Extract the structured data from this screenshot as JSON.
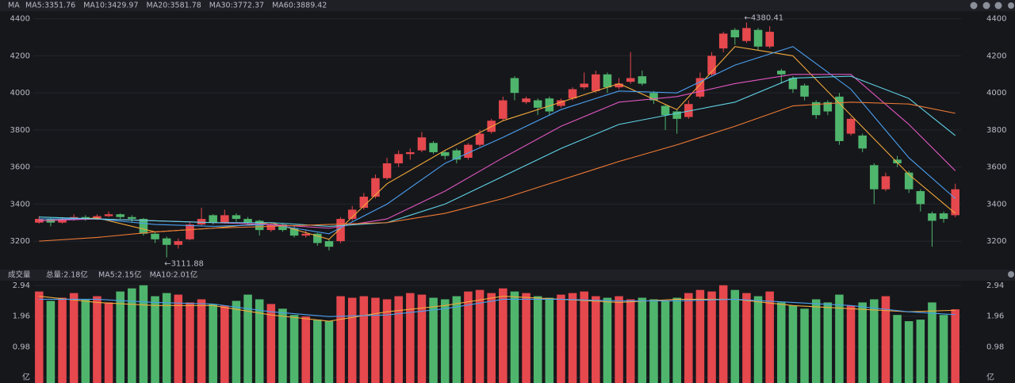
{
  "chart_data": [
    {
      "type": "candlestick",
      "title": "MA",
      "ohlc": [
        [
          3300,
          3335,
          3295,
          3320
        ],
        [
          3320,
          3325,
          3280,
          3300
        ],
        [
          3300,
          3330,
          3295,
          3320
        ],
        [
          3320,
          3345,
          3310,
          3330
        ],
        [
          3330,
          3340,
          3310,
          3320
        ],
        [
          3320,
          3345,
          3315,
          3335
        ],
        [
          3335,
          3360,
          3330,
          3345
        ],
        [
          3345,
          3350,
          3320,
          3330
        ],
        [
          3330,
          3340,
          3300,
          3320
        ],
        [
          3320,
          3325,
          3230,
          3240
        ],
        [
          3240,
          3250,
          3190,
          3210
        ],
        [
          3215,
          3225,
          3111.88,
          3180
        ],
        [
          3180,
          3215,
          3160,
          3200
        ],
        [
          3210,
          3300,
          3205,
          3290
        ],
        [
          3290,
          3380,
          3285,
          3320
        ],
        [
          3340,
          3345,
          3290,
          3300
        ],
        [
          3300,
          3370,
          3295,
          3340
        ],
        [
          3340,
          3350,
          3305,
          3320
        ],
        [
          3320,
          3330,
          3290,
          3300
        ],
        [
          3310,
          3315,
          3230,
          3260
        ],
        [
          3260,
          3300,
          3250,
          3290
        ],
        [
          3290,
          3295,
          3250,
          3260
        ],
        [
          3270,
          3280,
          3220,
          3230
        ],
        [
          3230,
          3260,
          3220,
          3240
        ],
        [
          3240,
          3245,
          3175,
          3190
        ],
        [
          3200,
          3210,
          3150,
          3170
        ],
        [
          3200,
          3330,
          3190,
          3320
        ],
        [
          3320,
          3390,
          3310,
          3370
        ],
        [
          3380,
          3460,
          3370,
          3440
        ],
        [
          3440,
          3560,
          3430,
          3540
        ],
        [
          3540,
          3650,
          3530,
          3620
        ],
        [
          3620,
          3690,
          3600,
          3670
        ],
        [
          3670,
          3700,
          3640,
          3680
        ],
        [
          3690,
          3790,
          3680,
          3760
        ],
        [
          3730,
          3740,
          3670,
          3680
        ],
        [
          3680,
          3690,
          3640,
          3660
        ],
        [
          3690,
          3700,
          3620,
          3640
        ],
        [
          3650,
          3730,
          3640,
          3720
        ],
        [
          3720,
          3800,
          3710,
          3780
        ],
        [
          3790,
          3860,
          3780,
          3850
        ],
        [
          3860,
          3980,
          3850,
          3960
        ],
        [
          4080,
          4090,
          3960,
          4000
        ],
        [
          3950,
          3980,
          3940,
          3970
        ],
        [
          3960,
          3970,
          3880,
          3920
        ],
        [
          3970,
          3980,
          3880,
          3900
        ],
        [
          3930,
          3970,
          3920,
          3960
        ],
        [
          3970,
          4030,
          3960,
          4020
        ],
        [
          4030,
          4110,
          4020,
          4050
        ],
        [
          4010,
          4120,
          4000,
          4100
        ],
        [
          4100,
          4110,
          4000,
          4030
        ],
        [
          4030,
          4080,
          4020,
          4050
        ],
        [
          4060,
          4220,
          4050,
          4080
        ],
        [
          4090,
          4120,
          4040,
          4050
        ],
        [
          4000,
          4010,
          3940,
          3960
        ],
        [
          3930,
          3940,
          3800,
          3880
        ],
        [
          3900,
          3910,
          3780,
          3860
        ],
        [
          3870,
          3960,
          3860,
          3940
        ],
        [
          3980,
          4110,
          3970,
          4080
        ],
        [
          4100,
          4220,
          4090,
          4200
        ],
        [
          4240,
          4330,
          4220,
          4320
        ],
        [
          4340,
          4350,
          4260,
          4300
        ],
        [
          4280,
          4380.41,
          4270,
          4350
        ],
        [
          4340,
          4350,
          4230,
          4250
        ],
        [
          4250,
          4360,
          4240,
          4330
        ],
        [
          4120,
          4130,
          4050,
          4100
        ],
        [
          4080,
          4090,
          4000,
          4020
        ],
        [
          4040,
          4050,
          3960,
          3980
        ],
        [
          3950,
          3960,
          3860,
          3880
        ],
        [
          3950,
          3960,
          3880,
          3900
        ],
        [
          3980,
          4000,
          3720,
          3740
        ],
        [
          3780,
          3870,
          3770,
          3860
        ],
        [
          3770,
          3780,
          3680,
          3700
        ],
        [
          3610,
          3620,
          3400,
          3480
        ],
        [
          3480,
          3570,
          3470,
          3550
        ],
        [
          3640,
          3660,
          3600,
          3620
        ],
        [
          3570,
          3580,
          3460,
          3480
        ],
        [
          3470,
          3480,
          3360,
          3400
        ],
        [
          3350,
          3360,
          3170,
          3310
        ],
        [
          3350,
          3360,
          3300,
          3320
        ],
        [
          3340,
          3510,
          3330,
          3480
        ]
      ],
      "up_color": "#e5484d",
      "down_color": "#4fb56d",
      "ma_x": [
        0,
        5,
        10,
        15,
        20,
        25,
        30,
        35,
        40,
        45,
        50,
        55,
        60,
        65,
        70,
        75,
        79
      ],
      "series": [
        {
          "name": "MA5:3351.76",
          "color": "#f2a93b",
          "values": [
            3310,
            3325,
            3250,
            3270,
            3300,
            3210,
            3510,
            3690,
            3850,
            3950,
            4050,
            3910,
            4250,
            4200,
            3880,
            3560,
            3350
          ]
        },
        {
          "name": "MA10:3429.97",
          "color": "#4a9ff0",
          "values": [
            3320,
            3320,
            3290,
            3280,
            3290,
            3240,
            3400,
            3620,
            3760,
            3910,
            4010,
            4000,
            4150,
            4250,
            4020,
            3650,
            3430
          ]
        },
        {
          "name": "MA20:3581.78",
          "color": "#e056c0",
          "values": [
            3310,
            3320,
            3310,
            3300,
            3290,
            3270,
            3320,
            3470,
            3650,
            3820,
            3950,
            3980,
            4050,
            4100,
            4100,
            3830,
            3580
          ]
        },
        {
          "name": "MA30:3772.37",
          "color": "#5fd3e6",
          "values": [
            3330,
            3320,
            3310,
            3300,
            3300,
            3280,
            3300,
            3400,
            3550,
            3700,
            3830,
            3890,
            3950,
            4080,
            4090,
            3970,
            3770
          ]
        },
        {
          "name": "MA60:3889.42",
          "color": "#f07b35",
          "values": [
            3200,
            3220,
            3250,
            3270,
            3280,
            3290,
            3300,
            3350,
            3430,
            3530,
            3630,
            3720,
            3820,
            3930,
            3950,
            3940,
            3890
          ]
        }
      ],
      "annotations": [
        "←4380.41",
        "←3111.88"
      ],
      "ylim": [
        3055,
        4450
      ],
      "yticks": [
        3200,
        3400,
        3600,
        3800,
        4000,
        4200,
        4400
      ]
    },
    {
      "type": "bar",
      "title": "成交量",
      "values": [
        2.75,
        2.45,
        2.55,
        2.7,
        2.5,
        2.6,
        2.4,
        2.75,
        2.85,
        2.95,
        2.6,
        2.7,
        2.65,
        2.4,
        2.5,
        2.35,
        2.3,
        2.45,
        2.65,
        2.5,
        2.35,
        2.2,
        2.0,
        1.95,
        1.85,
        1.8,
        2.6,
        2.55,
        2.6,
        2.55,
        2.5,
        2.6,
        2.7,
        2.65,
        2.55,
        2.5,
        2.6,
        2.75,
        2.8,
        2.7,
        2.85,
        2.75,
        2.7,
        2.6,
        2.55,
        2.65,
        2.7,
        2.75,
        2.6,
        2.55,
        2.6,
        2.5,
        2.55,
        2.5,
        2.45,
        2.55,
        2.7,
        2.8,
        2.75,
        2.95,
        2.8,
        2.7,
        2.6,
        2.75,
        2.4,
        2.3,
        2.2,
        2.5,
        2.4,
        2.65,
        2.3,
        2.4,
        2.5,
        2.6,
        2.0,
        1.8,
        1.85,
        2.4,
        2.0,
        2.18
      ],
      "total_label": "总量:2.18亿",
      "total_color": "#e5484d",
      "series": [
        {
          "name": "MA5:2.15亿",
          "color": "#f2a93b",
          "values": [
            2.6,
            2.4,
            2.3,
            2.3,
            2.0,
            1.8,
            2.1,
            2.3,
            2.6,
            2.5,
            2.4,
            2.5,
            2.5,
            2.3,
            2.2,
            2.1,
            2.15
          ]
        },
        {
          "name": "MA10:2.01亿",
          "color": "#4a9ff0",
          "values": [
            2.5,
            2.5,
            2.4,
            2.35,
            2.1,
            1.95,
            2.0,
            2.2,
            2.5,
            2.5,
            2.45,
            2.45,
            2.5,
            2.4,
            2.3,
            2.1,
            2.01
          ]
        }
      ],
      "ylim": [
        0,
        3.07
      ],
      "yticks": [
        {
          "value": 0,
          "label": "亿"
        },
        0.98,
        1.96,
        2.94
      ]
    }
  ]
}
